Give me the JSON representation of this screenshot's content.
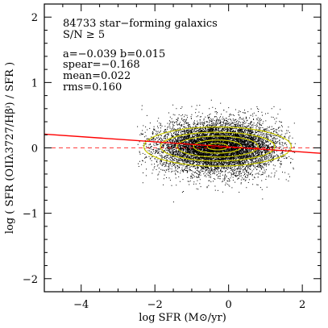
{
  "chart_data": {
    "type": "scatter",
    "xlabel": "log SFR (M⊙/yr)",
    "ylabel": "log ( SFR (OIIλ3727/Hβⁱ) / SFR )",
    "xlim": [
      -5,
      2.5
    ],
    "ylim": [
      -2.2,
      2.2
    ],
    "x_ticks": [
      -4,
      -2,
      0,
      2
    ],
    "y_ticks": [
      -2,
      -1,
      0,
      1,
      2
    ],
    "x_tick_labels": [
      "−4",
      "−2",
      "0",
      "2"
    ],
    "y_tick_labels": [
      "−2",
      "−1",
      "0",
      "1",
      "2"
    ],
    "grid": false,
    "annotations": [
      "84733 star−forming galaxics",
      "S/N ≥ 5",
      "a=−0.039     b=0.015",
      "spear=−0.168",
      "mean=0.022",
      "rms=0.160"
    ],
    "point_cloud": {
      "n_points": 84733,
      "x_center": -0.3,
      "y_center": 0.02,
      "x_sd": 0.8,
      "y_sd": 0.16,
      "x_range": [
        -2.5,
        1.8
      ],
      "y_range": [
        -1.1,
        0.9
      ],
      "color": "#000000"
    },
    "fit_line": {
      "slope": -0.039,
      "intercept": 0.015,
      "color": "#ff0000",
      "style": "solid"
    },
    "reference_line": {
      "y": 0,
      "color": "#ff0000",
      "style": "dashed"
    },
    "contours": {
      "color": "#cccc00",
      "center": [
        -0.3,
        0.02
      ],
      "radii": [
        [
          2.0,
          0.3
        ],
        [
          1.55,
          0.22
        ],
        [
          1.1,
          0.16
        ],
        [
          0.65,
          0.1
        ],
        [
          0.28,
          0.05
        ]
      ]
    }
  }
}
